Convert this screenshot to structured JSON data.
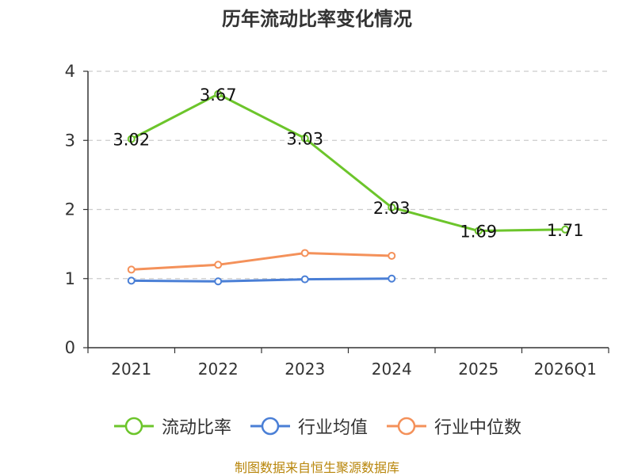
{
  "chart_data": {
    "type": "line",
    "title": "历年流动比率变化情况",
    "categories": [
      "2021",
      "2022",
      "2023",
      "2024",
      "2025",
      "2026Q1"
    ],
    "ylim": [
      0,
      4
    ],
    "yticks": [
      "0",
      "1",
      "2",
      "3",
      "4"
    ],
    "grid": true,
    "legend_position": "bottom",
    "series": [
      {
        "name": "流动比率",
        "color": "#6cc52b",
        "values": [
          3.02,
          3.67,
          3.03,
          2.03,
          1.69,
          1.71
        ],
        "labels": [
          "3.02",
          "3.67",
          "3.03",
          "2.03",
          "1.69",
          "1.71"
        ]
      },
      {
        "name": "行业均值",
        "color": "#4a7fd6",
        "values": [
          0.97,
          0.96,
          0.99,
          1.0,
          null,
          null
        ]
      },
      {
        "name": "行业中位数",
        "color": "#f4915a",
        "values": [
          1.13,
          1.2,
          1.37,
          1.33,
          null,
          null
        ]
      }
    ]
  },
  "footer": {
    "source": "制图数据来自恒生聚源数据库"
  }
}
